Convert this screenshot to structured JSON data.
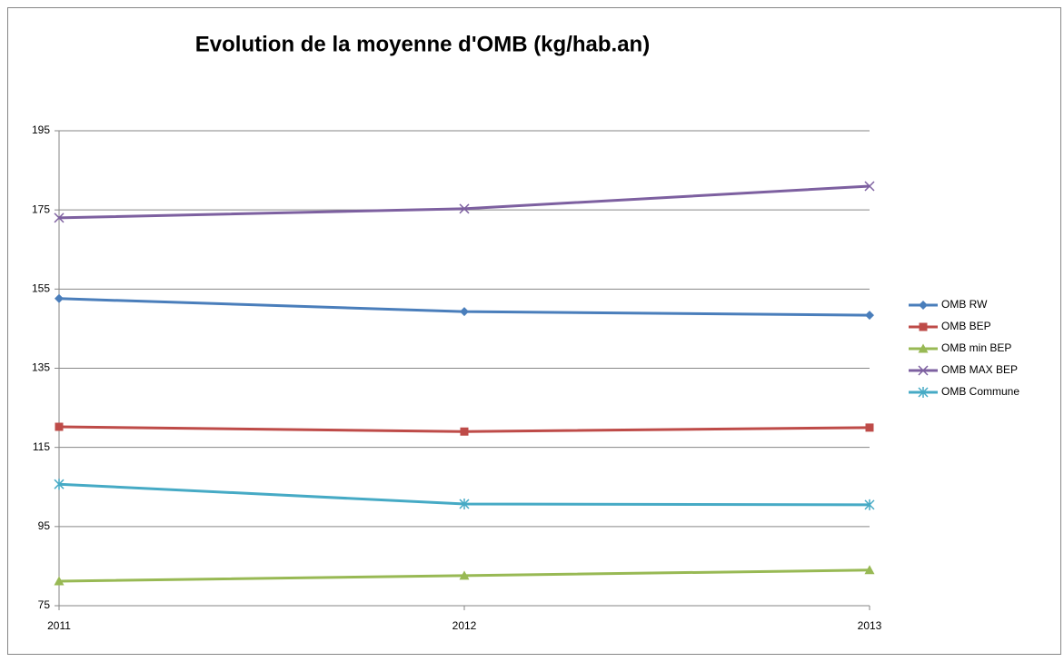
{
  "chart_data": {
    "type": "line",
    "title": "Evolution de la moyenne d'OMB (kg/hab.an)",
    "categories": [
      "2011",
      "2012",
      "2013"
    ],
    "series": [
      {
        "name": "OMB RW",
        "color": "#4a7ebb",
        "marker": "diamond",
        "values": [
          152.6,
          149.3,
          148.4
        ]
      },
      {
        "name": "OMB BEP",
        "color": "#be4b48",
        "marker": "square",
        "values": [
          120.2,
          119.0,
          120.0
        ]
      },
      {
        "name": "OMB min BEP",
        "color": "#98b954",
        "marker": "triangle",
        "values": [
          81.2,
          82.6,
          84.0
        ]
      },
      {
        "name": "OMB MAX BEP",
        "color": "#7d60a0",
        "marker": "x",
        "values": [
          173.0,
          175.3,
          181.0
        ]
      },
      {
        "name": "OMB Commune",
        "color": "#46aac5",
        "marker": "asterisk",
        "values": [
          105.7,
          100.7,
          100.5
        ]
      }
    ],
    "ylim": [
      75,
      195
    ],
    "yticks": [
      75,
      95,
      115,
      135,
      155,
      175,
      195
    ],
    "grid": true,
    "legend": "right"
  }
}
